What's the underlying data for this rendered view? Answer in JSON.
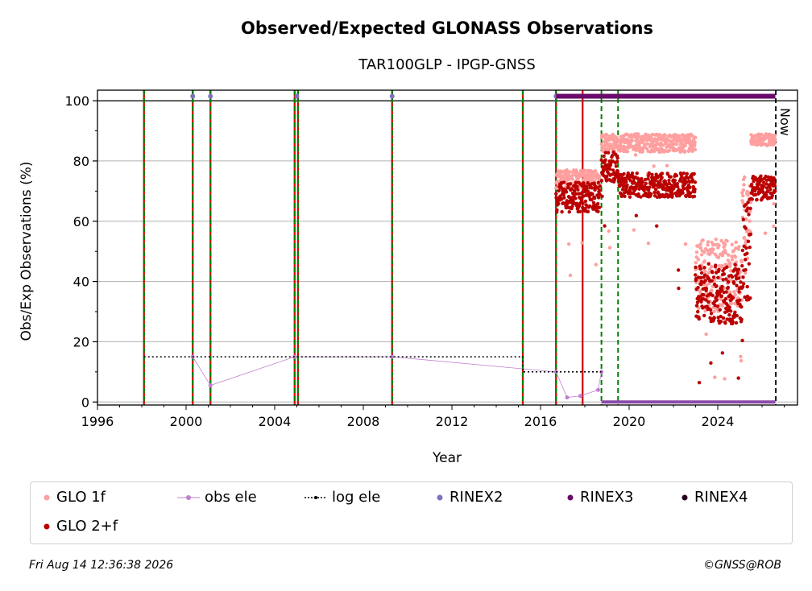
{
  "chart_data": {
    "type": "scatter",
    "title": "Observed/Expected GLONASS Observations",
    "subtitle": "TAR100GLP - IPGP-GNSS",
    "xlabel": "Year",
    "ylabel": "Obs/Exp Observations (%)",
    "xlim": [
      1996,
      2027.6
    ],
    "ylim": [
      -1,
      103.5
    ],
    "xticks": [
      1996,
      2000,
      2004,
      2008,
      2012,
      2016,
      2020,
      2024
    ],
    "yticks": [
      0,
      20,
      40,
      60,
      80,
      100
    ],
    "grid": "y",
    "now_label": "Now",
    "now_x": 2026.62,
    "colors": {
      "glo1f": "#ff9f9f",
      "glo2f": "#bb0000",
      "obs_ele": "#c080d0",
      "log_ele": "#000000",
      "rinex2": "#8070c0",
      "rinex3": "#6a0a6a",
      "rinex4": "#2a0020",
      "green_line": "#008000",
      "red_line": "#cc0000"
    },
    "event_lines_red_green": [
      1998.1,
      2000.3,
      2001.1,
      2004.9,
      2005.05,
      2009.3,
      2015.2,
      2016.7
    ],
    "event_lines_red": [
      2017.9
    ],
    "event_lines_green_dashed": [
      2018.75,
      2019.5
    ],
    "series": [
      {
        "name": "GLO 1f",
        "segments": [
          {
            "x0": 2016.7,
            "x1": 2018.7,
            "base": 74,
            "spread": 3
          },
          {
            "x0": 2018.75,
            "x1": 2023.0,
            "base": 86,
            "spread": 3
          },
          {
            "x0": 2023.0,
            "x1": 2025.1,
            "base": 42,
            "spread": 12
          },
          {
            "x0": 2025.1,
            "x1": 2025.5,
            "base": 60,
            "spread": 15
          },
          {
            "x0": 2025.5,
            "x1": 2026.6,
            "base": 87,
            "spread": 2
          }
        ]
      },
      {
        "name": "GLO 2+f",
        "segments": [
          {
            "x0": 2016.7,
            "x1": 2018.7,
            "base": 68,
            "spread": 5
          },
          {
            "x0": 2018.75,
            "x1": 2019.5,
            "base": 78,
            "spread": 5
          },
          {
            "x0": 2019.5,
            "x1": 2023.0,
            "base": 72,
            "spread": 4
          },
          {
            "x0": 2023.0,
            "x1": 2025.1,
            "base": 36,
            "spread": 10
          },
          {
            "x0": 2025.1,
            "x1": 2025.5,
            "base": 50,
            "spread": 18
          },
          {
            "x0": 2025.5,
            "x1": 2026.6,
            "base": 71,
            "spread": 4
          }
        ]
      },
      {
        "name": "obs ele",
        "points": [
          [
            2000.3,
            15
          ],
          [
            2001.1,
            5.5
          ],
          [
            2004.9,
            15
          ],
          [
            2009.3,
            15
          ],
          [
            2016.7,
            10
          ],
          [
            2017.2,
            1.5
          ],
          [
            2017.8,
            2
          ],
          [
            2018.6,
            4
          ],
          [
            2018.75,
            10
          ]
        ]
      },
      {
        "name": "log ele",
        "points": [
          [
            1998.1,
            15
          ],
          [
            2015.2,
            15
          ],
          [
            2015.2,
            10
          ],
          [
            2018.75,
            10
          ]
        ]
      },
      {
        "name": "RINEX2",
        "points": [
          [
            2000.3,
            101.5
          ],
          [
            2001.1,
            101.5
          ],
          [
            2005.0,
            101.5
          ],
          [
            2009.3,
            101.5
          ],
          [
            2016.7,
            101.5
          ]
        ]
      },
      {
        "name": "RINEX3",
        "range": [
          2016.7,
          2026.6
        ],
        "y": 101.5
      },
      {
        "name": "RINEX4",
        "range": [
          2018.75,
          2026.6
        ],
        "y": 0
      }
    ]
  },
  "legend": {
    "glo1f": "GLO 1f",
    "obs_ele": "obs ele",
    "log_ele": "log ele",
    "rinex2": "RINEX2",
    "rinex3": "RINEX3",
    "rinex4": "RINEX4",
    "glo2f": "GLO 2+f"
  },
  "footer": {
    "timestamp": "Fri Aug 14 12:36:38 2026",
    "credit": "©GNSS@ROB"
  }
}
